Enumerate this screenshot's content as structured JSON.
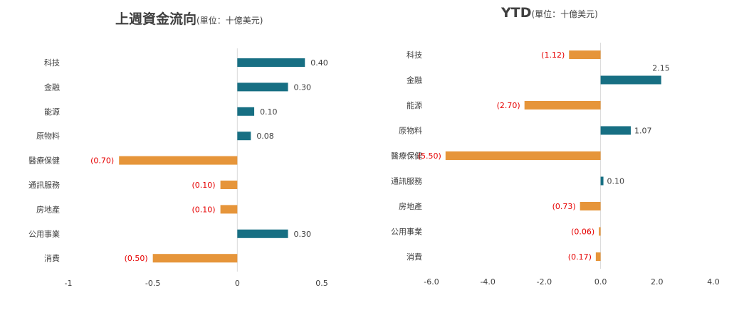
{
  "colors": {
    "positive": "#176f83",
    "negative": "#e6953a",
    "negative_label": "#e60000",
    "label": "#404040",
    "axis": "#d9d9d9"
  },
  "chart_data": [
    {
      "type": "bar",
      "orientation": "horizontal",
      "title": "上週資金流向",
      "title_unit": "(單位：十億美元)",
      "categories": [
        "科技",
        "金融",
        "能源",
        "原物料",
        "醫療保健",
        "通訊服務",
        "房地產",
        "公用事業",
        "消費"
      ],
      "values": [
        0.4,
        0.3,
        0.1,
        0.08,
        -0.7,
        -0.1,
        -0.1,
        0.3,
        -0.5
      ],
      "data_labels": [
        "0.40",
        "0.30",
        "0.10",
        "0.08",
        "(0.70)",
        "(0.10)",
        "(0.10)",
        "0.30",
        "(0.50)"
      ],
      "xlim": [
        -1,
        0.5
      ],
      "xticks": [
        -1,
        -0.5,
        0,
        0.5
      ],
      "xtick_labels": [
        "-1",
        "-0.5",
        "0",
        "0.5"
      ],
      "grid": false
    },
    {
      "type": "bar",
      "orientation": "horizontal",
      "title": "YTD",
      "title_unit": "(單位：十億美元)",
      "categories": [
        "科技",
        "金融",
        "能源",
        "原物料",
        "醫療保健",
        "通訊服務",
        "房地產",
        "公用事業",
        "消費"
      ],
      "values": [
        -1.12,
        2.15,
        -2.7,
        1.07,
        -5.5,
        0.1,
        -0.73,
        -0.06,
        -0.17
      ],
      "data_labels": [
        "(1.12)",
        "2.15",
        "(2.70)",
        "1.07",
        "(5.50)",
        "0.10",
        "(0.73)",
        "(0.06)",
        "(0.17)"
      ],
      "xlim": [
        -6.0,
        4.0
      ],
      "xticks": [
        -6,
        -4,
        -2,
        0,
        2,
        4
      ],
      "xtick_labels": [
        "-6.0",
        "-4.0",
        "-2.0",
        "0.0",
        "2.0",
        "4.0"
      ],
      "grid": false
    }
  ]
}
